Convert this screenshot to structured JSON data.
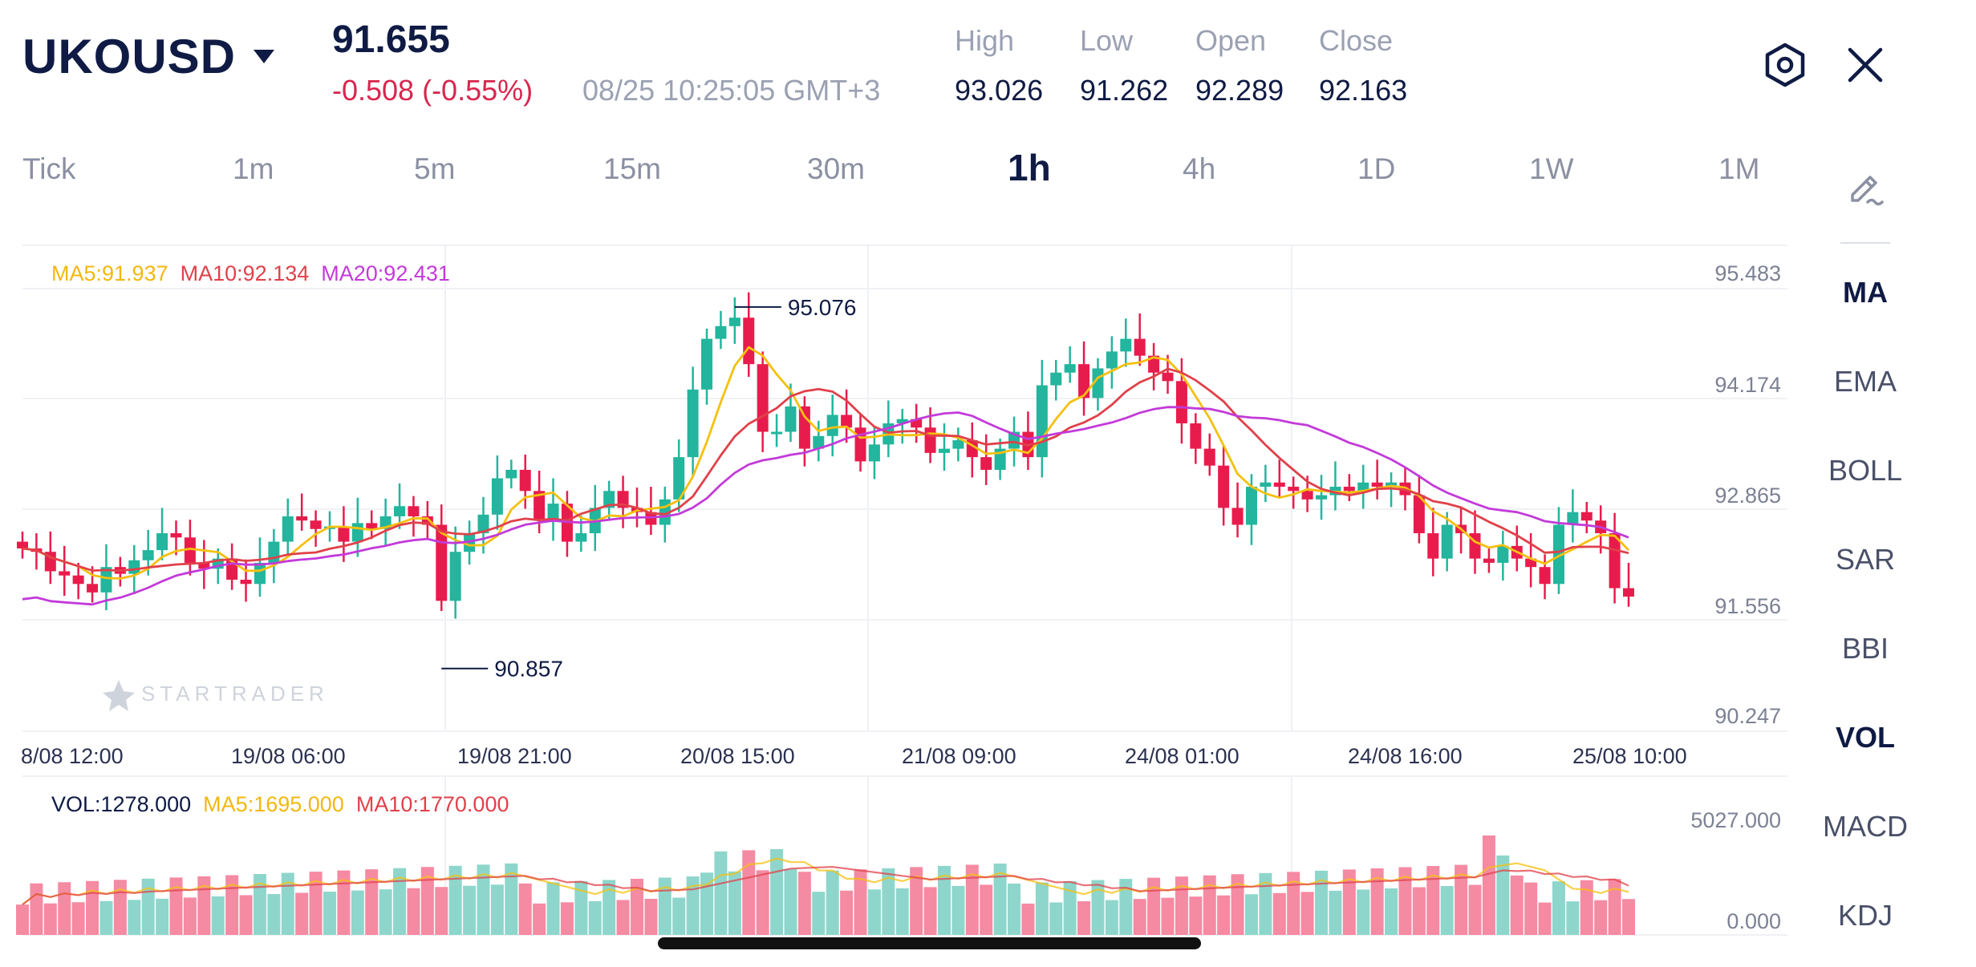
{
  "header": {
    "symbol": "UKOUSD",
    "price": "91.655",
    "change": "-0.508 (-0.55%)",
    "datetime": "08/25 10:25:05 GMT+3",
    "ohlc": [
      {
        "label": "High",
        "value": "93.026"
      },
      {
        "label": "Low",
        "value": "91.262"
      },
      {
        "label": "Open",
        "value": "92.289"
      },
      {
        "label": "Close",
        "value": "92.163"
      }
    ],
    "settings_icon": "settings-hexagon-icon",
    "close_icon": "close-x-icon"
  },
  "timeframes": [
    "Tick",
    "1m",
    "5m",
    "15m",
    "30m",
    "1h",
    "4h",
    "1D",
    "1W",
    "1M"
  ],
  "active_timeframe": "1h",
  "indicators": [
    "MA",
    "EMA",
    "BOLL",
    "SAR",
    "BBI",
    "VOL",
    "MACD",
    "KDJ"
  ],
  "active_indicators": [
    "MA",
    "VOL"
  ],
  "edit_icon": "draw-pencil-icon",
  "main_chart": {
    "legend": {
      "ma5": "MA5:91.937",
      "ma10": "MA10:92.134",
      "ma20": "MA20:92.431"
    },
    "y_labels": [
      "95.483",
      "94.174",
      "92.865",
      "91.556",
      "90.247"
    ],
    "y_range": [
      90.247,
      95.483
    ],
    "x_labels": [
      "8/08 12:00",
      "19/08 06:00",
      "19/08 21:00",
      "20/08 15:00",
      "21/08 09:00",
      "24/08 01:00",
      "24/08 16:00",
      "25/08 10:00"
    ],
    "max_marker": "95.076",
    "min_marker": "90.857",
    "watermark": "STARTRADER"
  },
  "volume_chart": {
    "legend": {
      "vol": "VOL:1278.000",
      "ma5": "MA5:1695.000",
      "ma10": "MA10:1770.000"
    },
    "y_labels": [
      "5027.000",
      "0.000"
    ],
    "y_range": [
      0,
      5027
    ]
  },
  "colors": {
    "up": "#23b59d",
    "down": "#e81c4c",
    "up_vol": "#8ed6cc",
    "down_vol": "#f58aa3",
    "ma5": "#f5c00f",
    "ma10": "#e0414a",
    "ma20": "#c33ad9"
  }
}
